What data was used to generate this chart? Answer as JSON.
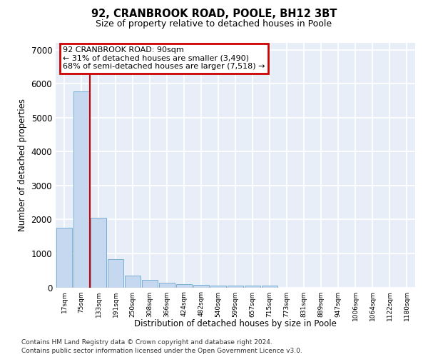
{
  "title1": "92, CRANBROOK ROAD, POOLE, BH12 3BT",
  "title2": "Size of property relative to detached houses in Poole",
  "xlabel": "Distribution of detached houses by size in Poole",
  "ylabel": "Number of detached properties",
  "categories": [
    "17sqm",
    "75sqm",
    "133sqm",
    "191sqm",
    "250sqm",
    "308sqm",
    "366sqm",
    "424sqm",
    "482sqm",
    "540sqm",
    "599sqm",
    "657sqm",
    "715sqm",
    "773sqm",
    "831sqm",
    "889sqm",
    "947sqm",
    "1006sqm",
    "1064sqm",
    "1122sqm",
    "1180sqm"
  ],
  "values": [
    1750,
    5780,
    2050,
    830,
    350,
    220,
    140,
    100,
    75,
    60,
    55,
    50,
    50,
    0,
    0,
    0,
    0,
    0,
    0,
    0,
    0
  ],
  "bar_color": "#c5d8f0",
  "bar_edge_color": "#7aafd4",
  "background_color": "#e8eef8",
  "grid_color": "#ffffff",
  "annotation_text": "92 CRANBROOK ROAD: 90sqm\n← 31% of detached houses are smaller (3,490)\n68% of semi-detached houses are larger (7,518) →",
  "annotation_box_color": "#cc0000",
  "red_line_x": 1.5,
  "ylim": [
    0,
    7200
  ],
  "yticks": [
    0,
    1000,
    2000,
    3000,
    4000,
    5000,
    6000,
    7000
  ],
  "footer_line1": "Contains HM Land Registry data © Crown copyright and database right 2024.",
  "footer_line2": "Contains public sector information licensed under the Open Government Licence v3.0."
}
